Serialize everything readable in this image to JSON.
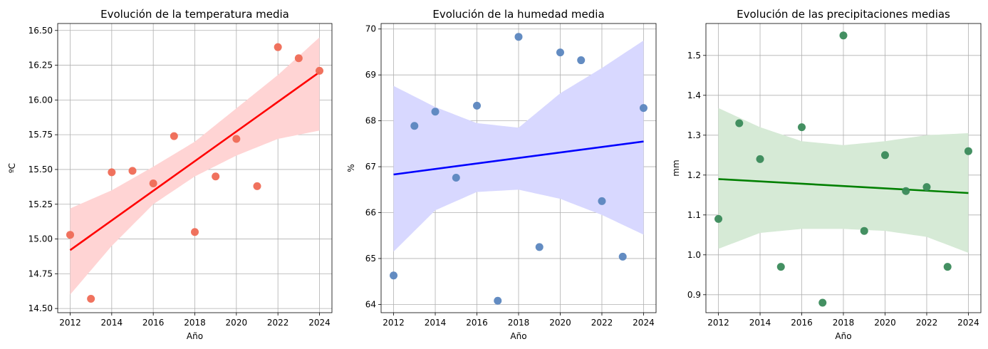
{
  "chart_data": [
    {
      "type": "scatter",
      "title": "Evolución de la temperatura media",
      "xlabel": "Año",
      "ylabel": "ºC",
      "xlim": [
        2011.4,
        2024.6
      ],
      "ylim": [
        14.47,
        16.55
      ],
      "xticks": [
        2012,
        2014,
        2016,
        2018,
        2020,
        2022,
        2024
      ],
      "xtick_labels": [
        "2012",
        "2014",
        "2016",
        "2018",
        "2020",
        "2022",
        "2024"
      ],
      "yticks": [
        14.5,
        14.75,
        15.0,
        15.25,
        15.5,
        15.75,
        16.0,
        16.25,
        16.5
      ],
      "ytick_labels": [
        "14.50",
        "14.75",
        "15.00",
        "15.25",
        "15.50",
        "15.75",
        "16.00",
        "16.25",
        "16.50"
      ],
      "grid": true,
      "point_color": "#ef6a55",
      "line_color": "#ff0000",
      "band_color": "#ffd4d4",
      "x": [
        2012,
        2013,
        2014,
        2015,
        2016,
        2017,
        2018,
        2019,
        2020,
        2021,
        2022,
        2023,
        2024
      ],
      "y": [
        15.03,
        14.57,
        15.48,
        15.49,
        15.4,
        15.74,
        15.05,
        15.45,
        15.72,
        15.38,
        16.38,
        16.3,
        16.21
      ],
      "regression": {
        "x": [
          2012,
          2024
        ],
        "y": [
          14.92,
          16.2
        ]
      },
      "band": {
        "x": [
          2012,
          2014,
          2016,
          2018,
          2020,
          2022,
          2024
        ],
        "lower": [
          14.6,
          14.95,
          15.25,
          15.45,
          15.6,
          15.72,
          15.78
        ],
        "upper": [
          15.22,
          15.35,
          15.52,
          15.7,
          15.94,
          16.18,
          16.45
        ]
      }
    },
    {
      "type": "scatter",
      "title": "Evolución de la humedad media",
      "xlabel": "Año",
      "ylabel": "%",
      "xlim": [
        2011.4,
        2024.6
      ],
      "ylim": [
        63.82,
        70.12
      ],
      "xticks": [
        2012,
        2014,
        2016,
        2018,
        2020,
        2022,
        2024
      ],
      "xtick_labels": [
        "2012",
        "2014",
        "2016",
        "2018",
        "2020",
        "2022",
        "2024"
      ],
      "yticks": [
        64,
        65,
        66,
        67,
        68,
        69,
        70
      ],
      "ytick_labels": [
        "64",
        "65",
        "66",
        "67",
        "68",
        "69",
        "70"
      ],
      "grid": true,
      "point_color": "#5b86bf",
      "line_color": "#0000ff",
      "band_color": "#d8d8ff",
      "x": [
        2012,
        2013,
        2014,
        2015,
        2016,
        2017,
        2018,
        2019,
        2020,
        2021,
        2022,
        2023,
        2024
      ],
      "y": [
        64.63,
        67.89,
        68.2,
        66.76,
        68.33,
        64.08,
        69.83,
        65.25,
        69.49,
        69.32,
        66.25,
        65.04,
        68.28
      ],
      "regression": {
        "x": [
          2012,
          2024
        ],
        "y": [
          66.83,
          67.55
        ]
      },
      "band": {
        "x": [
          2012,
          2014,
          2016,
          2018,
          2020,
          2022,
          2024
        ],
        "lower": [
          65.15,
          66.05,
          66.45,
          66.5,
          66.3,
          65.95,
          65.52
        ],
        "upper": [
          68.76,
          68.3,
          67.95,
          67.85,
          68.6,
          69.15,
          69.75
        ]
      }
    },
    {
      "type": "scatter",
      "title": "Evolución de las precipitaciones medias",
      "xlabel": "Año",
      "ylabel": "mm",
      "xlim": [
        2011.4,
        2024.6
      ],
      "ylim": [
        0.855,
        1.58
      ],
      "xticks": [
        2012,
        2014,
        2016,
        2018,
        2020,
        2022,
        2024
      ],
      "xtick_labels": [
        "2012",
        "2014",
        "2016",
        "2018",
        "2020",
        "2022",
        "2024"
      ],
      "yticks": [
        0.9,
        1.0,
        1.1,
        1.2,
        1.3,
        1.4,
        1.5
      ],
      "ytick_labels": [
        "0.9",
        "1.0",
        "1.1",
        "1.2",
        "1.3",
        "1.4",
        "1.5"
      ],
      "grid": true,
      "point_color": "#3a8a5a",
      "line_color": "#008000",
      "band_color": "#d6ead6",
      "x": [
        2012,
        2013,
        2014,
        2015,
        2016,
        2017,
        2018,
        2019,
        2020,
        2021,
        2022,
        2023,
        2024
      ],
      "y": [
        1.09,
        1.33,
        1.24,
        0.97,
        1.32,
        0.88,
        1.55,
        1.06,
        1.25,
        1.16,
        1.17,
        0.97,
        1.26
      ],
      "regression": {
        "x": [
          2012,
          2024
        ],
        "y": [
          1.19,
          1.155
        ]
      },
      "band": {
        "x": [
          2012,
          2014,
          2016,
          2018,
          2020,
          2022,
          2024
        ],
        "lower": [
          1.015,
          1.055,
          1.065,
          1.065,
          1.06,
          1.045,
          1.005
        ],
        "upper": [
          1.368,
          1.32,
          1.285,
          1.275,
          1.285,
          1.3,
          1.305
        ]
      }
    }
  ]
}
